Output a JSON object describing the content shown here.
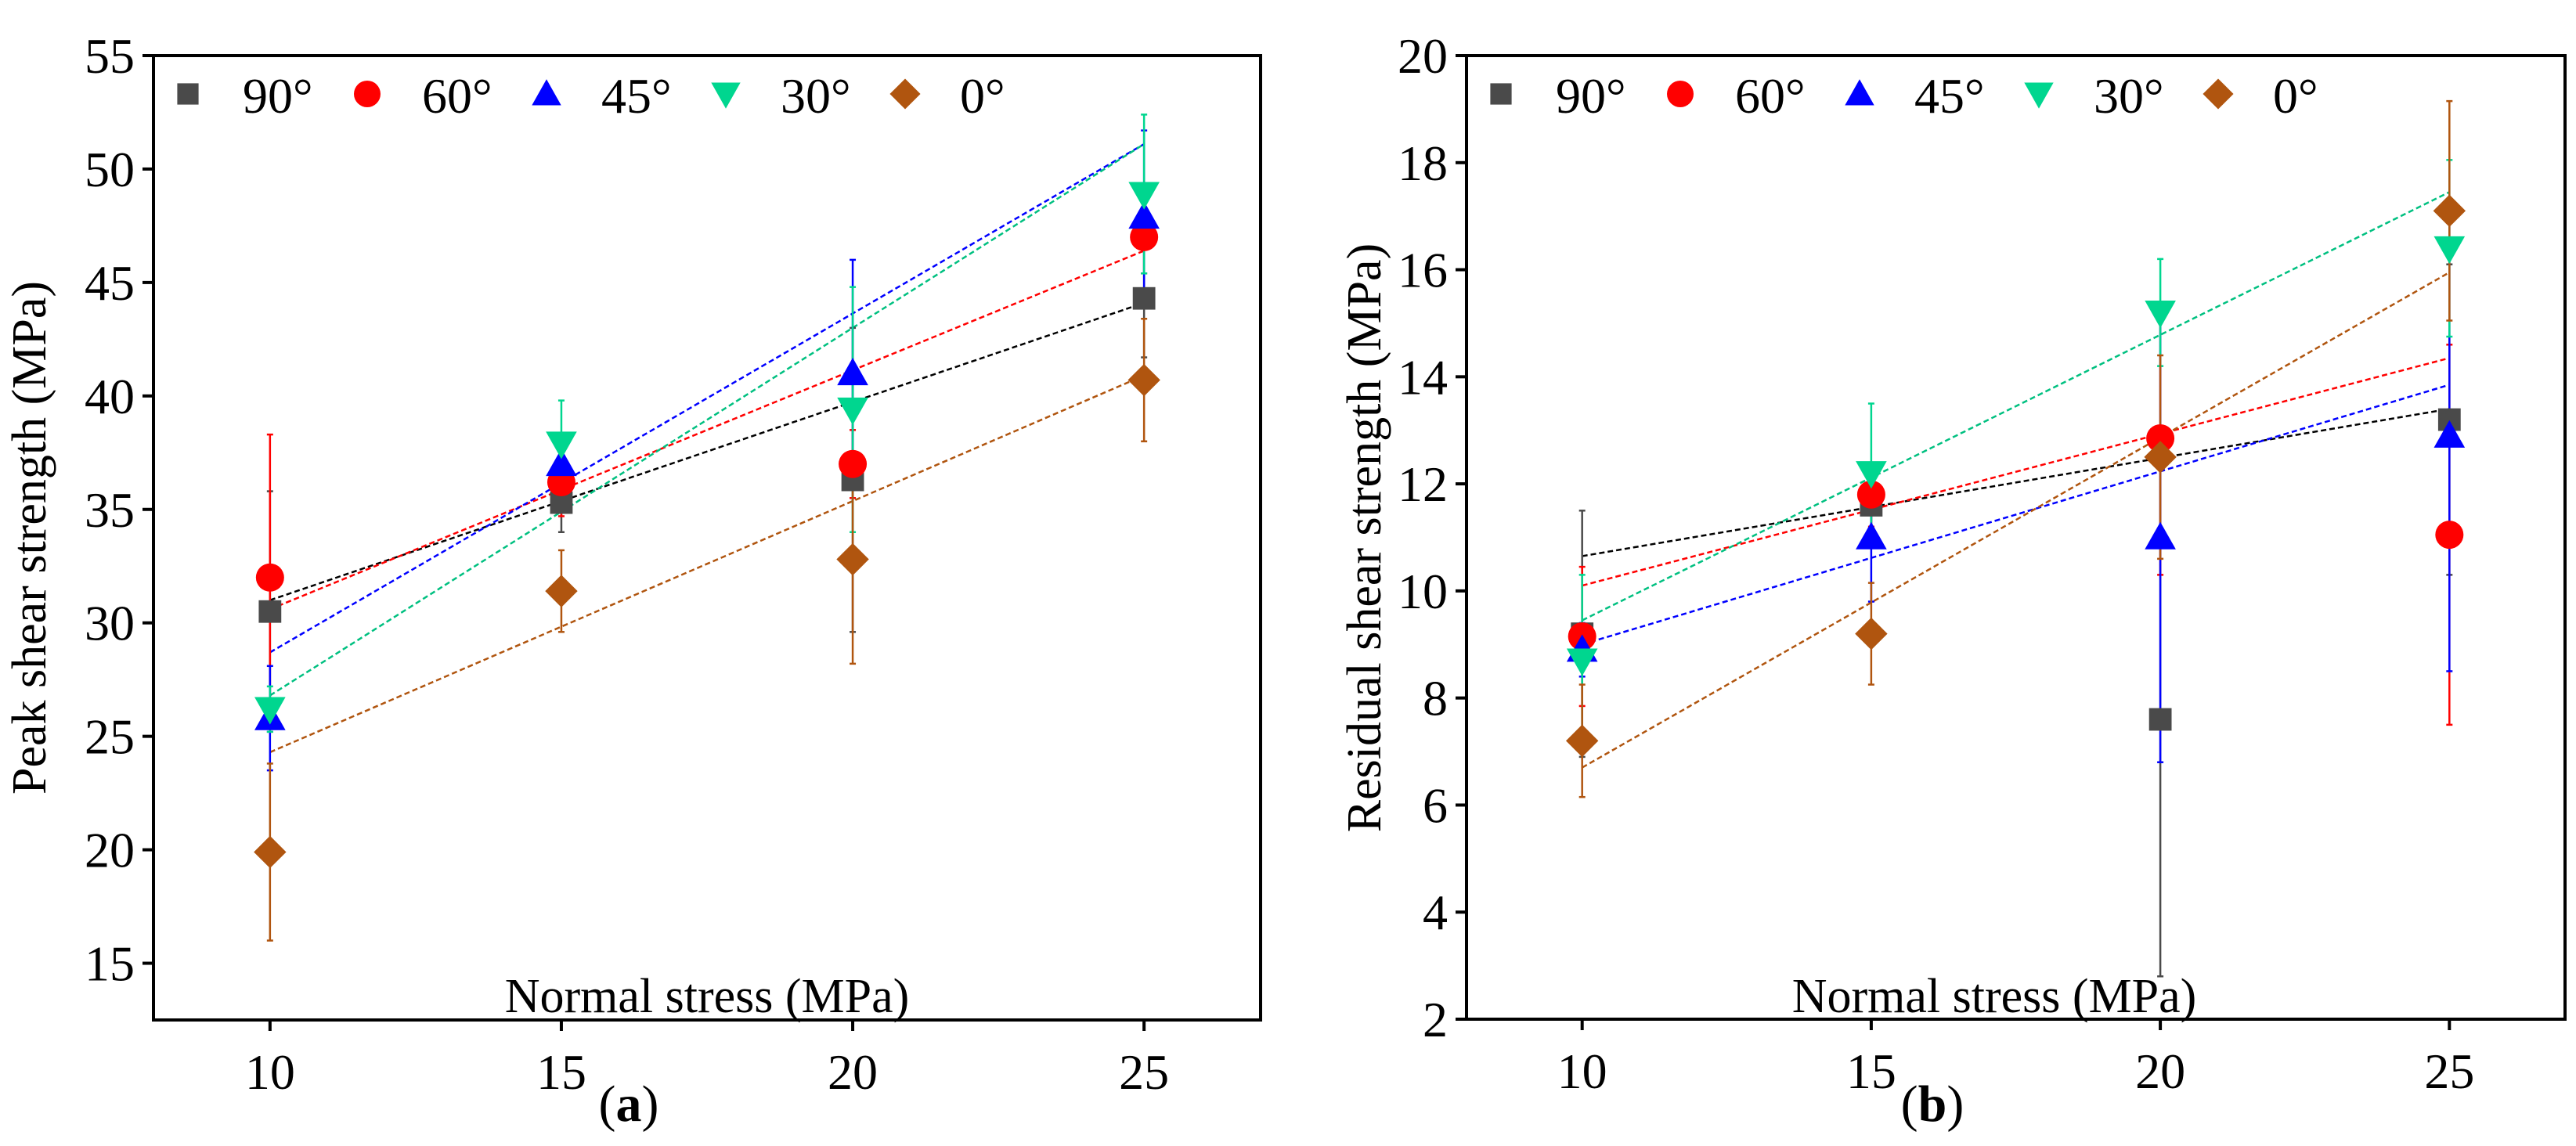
{
  "legend_colors": {
    "90°": "#4a4a4a",
    "60°": "#ff0000",
    "45°": "#0000ff",
    "30°": "#00d68f",
    "0°": "#b0550f"
  },
  "fit_colors": {
    "90°": "#000000",
    "60°": "#ff0000",
    "45°": "#0000ff",
    "30°": "#00c080",
    "0°": "#b0550f"
  },
  "markers": {
    "90°": "square",
    "60°": "circle",
    "45°": "triangle-up",
    "30°": "triangle-down",
    "0°": "diamond"
  },
  "chart_data": [
    {
      "type": "scatter",
      "panel_label": "(a)",
      "panel_letter": "a",
      "xlabel": "Normal stress (MPa)",
      "ylabel": "Peak shear strength (MPa)",
      "xlim": [
        8,
        27
      ],
      "ylim": [
        12.5,
        55
      ],
      "xticks": [
        10,
        15,
        20,
        25
      ],
      "yticks": [
        15,
        20,
        25,
        30,
        35,
        40,
        45,
        50,
        55
      ],
      "legend_position": "top",
      "x": [
        10,
        15,
        20,
        25
      ],
      "series": [
        {
          "name": "90°",
          "values": [
            30.5,
            35.3,
            36.3,
            44.3
          ],
          "errors": [
            5.3,
            1.3,
            6.7,
            2.6
          ],
          "fit": [
            31.0,
            44.1
          ]
        },
        {
          "name": "60°",
          "values": [
            32.0,
            36.2,
            37.0,
            47.0
          ],
          "errors": [
            6.3,
            1.5,
            1.5,
            1.6
          ],
          "fit": [
            30.6,
            46.4
          ]
        },
        {
          "name": "45°",
          "values": [
            25.8,
            37.0,
            41.0,
            47.9
          ],
          "errors": [
            2.3,
            1.2,
            5.0,
            3.8
          ],
          "fit": [
            28.7,
            51.1
          ]
        },
        {
          "name": "30°",
          "values": [
            26.2,
            37.9,
            39.4,
            48.9
          ],
          "errors": [
            1.0,
            1.9,
            5.4,
            3.5
          ],
          "fit": [
            26.8,
            51.1
          ]
        },
        {
          "name": "0°",
          "values": [
            19.9,
            31.4,
            32.8,
            40.7
          ],
          "errors": [
            3.9,
            1.8,
            4.6,
            2.7
          ],
          "fit": [
            24.3,
            40.9
          ]
        }
      ]
    },
    {
      "type": "scatter",
      "panel_label": "(b)",
      "panel_letter": "b",
      "xlabel": "Normal stress (MPa)",
      "ylabel": "Residual shear strength (MPa)",
      "xlim": [
        8,
        27
      ],
      "ylim": [
        2,
        20
      ],
      "xticks": [
        10,
        15,
        20,
        25
      ],
      "yticks": [
        2,
        4,
        6,
        8,
        10,
        12,
        14,
        16,
        18,
        20
      ],
      "legend_position": "top",
      "x": [
        10,
        15,
        20,
        25
      ],
      "series": [
        {
          "name": "90°",
          "values": [
            9.2,
            11.6,
            7.6,
            13.2
          ],
          "errors": [
            2.3,
            0.5,
            4.8,
            2.9
          ],
          "fit": [
            10.65,
            13.4
          ]
        },
        {
          "name": "60°",
          "values": [
            9.15,
            11.8,
            12.85,
            11.05
          ],
          "errors": [
            1.3,
            0.6,
            2.55,
            3.55
          ],
          "fit": [
            10.1,
            14.35
          ]
        },
        {
          "name": "45°",
          "values": [
            8.9,
            11.0,
            11.0,
            12.9
          ],
          "errors": [
            0.5,
            1.2,
            4.2,
            4.4
          ],
          "fit": [
            9.0,
            13.85
          ]
        },
        {
          "name": "30°",
          "values": [
            8.7,
            12.2,
            15.2,
            16.4
          ],
          "errors": [
            1.6,
            1.3,
            1.0,
            1.65
          ],
          "fit": [
            9.45,
            17.45
          ]
        },
        {
          "name": "0°",
          "values": [
            7.2,
            9.2,
            12.5,
            17.1
          ],
          "errors": [
            1.05,
            0.95,
            1.9,
            2.05
          ],
          "fit": [
            6.7,
            15.95
          ]
        }
      ]
    }
  ]
}
